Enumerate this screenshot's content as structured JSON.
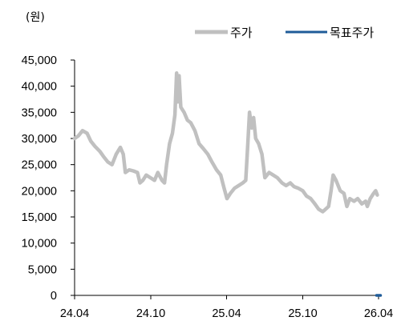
{
  "chart_data": {
    "type": "line",
    "y_unit": "(원)",
    "ylim": [
      0,
      45000
    ],
    "y_ticks": [
      0,
      5000,
      10000,
      15000,
      20000,
      25000,
      30000,
      35000,
      40000,
      45000
    ],
    "y_tick_labels": [
      "0",
      "5,000",
      "10,000",
      "15,000",
      "20,000",
      "25,000",
      "30,000",
      "35,000",
      "40,000",
      "45,000"
    ],
    "x_ticks": [
      "2024-04-01",
      "2024-10-01",
      "2025-04-01",
      "2025-10-01",
      "2026-04-01"
    ],
    "x_tick_labels": [
      "24.04",
      "24.10",
      "25.04",
      "25.10",
      "26.04"
    ],
    "xlim": [
      "2024-04-01",
      "2026-04-01"
    ],
    "legend_position": "top-right",
    "grid": false,
    "series": [
      {
        "name": "주가",
        "color": "#c0c0c0",
        "style": "thick-line",
        "points": [
          [
            "2024-04-01",
            30000
          ],
          [
            "2024-04-10",
            30500
          ],
          [
            "2024-04-20",
            31500
          ],
          [
            "2024-05-01",
            31000
          ],
          [
            "2024-05-10",
            29500
          ],
          [
            "2024-05-20",
            28500
          ],
          [
            "2024-06-01",
            27500
          ],
          [
            "2024-06-10",
            26500
          ],
          [
            "2024-06-20",
            25500
          ],
          [
            "2024-06-30",
            25000
          ],
          [
            "2024-07-10",
            27000
          ],
          [
            "2024-07-20",
            28300
          ],
          [
            "2024-07-27",
            27000
          ],
          [
            "2024-08-01",
            23500
          ],
          [
            "2024-08-10",
            24000
          ],
          [
            "2024-08-20",
            23800
          ],
          [
            "2024-08-30",
            23500
          ],
          [
            "2024-09-05",
            21500
          ],
          [
            "2024-09-12",
            22000
          ],
          [
            "2024-09-20",
            23000
          ],
          [
            "2024-09-30",
            22500
          ],
          [
            "2024-10-10",
            22000
          ],
          [
            "2024-10-18",
            23500
          ],
          [
            "2024-10-28",
            22000
          ],
          [
            "2024-11-03",
            21500
          ],
          [
            "2024-11-08",
            25000
          ],
          [
            "2024-11-15",
            29000
          ],
          [
            "2024-11-22",
            31000
          ],
          [
            "2024-11-28",
            34500
          ],
          [
            "2024-12-02",
            42500
          ],
          [
            "2024-12-05",
            37000
          ],
          [
            "2024-12-08",
            42000
          ],
          [
            "2024-12-12",
            36000
          ],
          [
            "2024-12-20",
            35000
          ],
          [
            "2024-12-28",
            33500
          ],
          [
            "2025-01-05",
            33000
          ],
          [
            "2025-01-15",
            31500
          ],
          [
            "2025-01-25",
            29000
          ],
          [
            "2025-02-05",
            28000
          ],
          [
            "2025-02-15",
            27000
          ],
          [
            "2025-02-25",
            25500
          ],
          [
            "2025-03-08",
            24000
          ],
          [
            "2025-03-18",
            23000
          ],
          [
            "2025-03-26",
            20500
          ],
          [
            "2025-04-02",
            18500
          ],
          [
            "2025-04-10",
            19500
          ],
          [
            "2025-04-20",
            20500
          ],
          [
            "2025-04-30",
            21000
          ],
          [
            "2025-05-10",
            21500
          ],
          [
            "2025-05-17",
            22000
          ],
          [
            "2025-05-22",
            29000
          ],
          [
            "2025-05-26",
            35000
          ],
          [
            "2025-05-31",
            32000
          ],
          [
            "2025-06-05",
            34000
          ],
          [
            "2025-06-10",
            30000
          ],
          [
            "2025-06-17",
            29000
          ],
          [
            "2025-06-25",
            27000
          ],
          [
            "2025-07-02",
            22500
          ],
          [
            "2025-07-12",
            23500
          ],
          [
            "2025-07-22",
            23000
          ],
          [
            "2025-08-01",
            22500
          ],
          [
            "2025-08-12",
            21500
          ],
          [
            "2025-08-22",
            21000
          ],
          [
            "2025-09-01",
            21500
          ],
          [
            "2025-09-10",
            20800
          ],
          [
            "2025-09-20",
            20500
          ],
          [
            "2025-10-01",
            20000
          ],
          [
            "2025-10-10",
            19000
          ],
          [
            "2025-10-20",
            18500
          ],
          [
            "2025-10-30",
            17500
          ],
          [
            "2025-11-08",
            16500
          ],
          [
            "2025-11-18",
            16000
          ],
          [
            "2025-11-25",
            16500
          ],
          [
            "2025-12-02",
            17000
          ],
          [
            "2025-12-08",
            20000
          ],
          [
            "2025-12-13",
            23000
          ],
          [
            "2025-12-20",
            22000
          ],
          [
            "2025-12-30",
            20000
          ],
          [
            "2026-01-08",
            19500
          ],
          [
            "2026-01-15",
            17000
          ],
          [
            "2026-01-22",
            18500
          ],
          [
            "2026-02-01",
            18000
          ],
          [
            "2026-02-10",
            18500
          ],
          [
            "2026-02-20",
            17500
          ],
          [
            "2026-03-01",
            18000
          ],
          [
            "2026-03-05",
            17000
          ],
          [
            "2026-03-12",
            18500
          ],
          [
            "2026-03-20",
            19500
          ],
          [
            "2026-03-25",
            20000
          ],
          [
            "2026-03-29",
            19200
          ]
        ]
      },
      {
        "name": "목표주가",
        "color": "#1f5c99",
        "style": "line",
        "points": [
          [
            "2026-03-31",
            0
          ]
        ]
      }
    ]
  }
}
